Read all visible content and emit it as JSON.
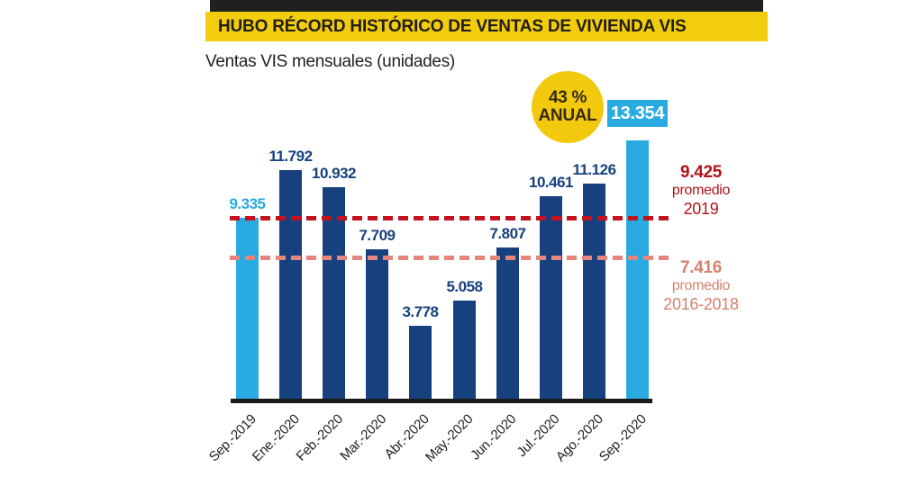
{
  "header": {
    "title": "HUBO RÉCORD HISTÓRICO DE VENTAS DE VIVIENDA VIS"
  },
  "subtitle": "Ventas VIS mensuales (unidades)",
  "badge": {
    "percent": "43 %",
    "caption": "ANUAL"
  },
  "colors": {
    "ink": "#211f1f",
    "yellow_bar": "#f2cd0d",
    "yellow_badge": "#f3c90e",
    "cyan": "#29abe2",
    "navy": "#16417e",
    "red_line": "#c3131f",
    "red_text": "#b1121a",
    "salmon_line": "#e5857b",
    "salmon_text": "#d8806f"
  },
  "chart_data": {
    "type": "bar",
    "title": "Ventas VIS mensuales (unidades)",
    "xlabel": "",
    "ylabel": "unidades",
    "ylim": [
      0,
      13354
    ],
    "grid": false,
    "legend": false,
    "categories": [
      "Sep.-2019",
      "Ene.-2020",
      "Feb.-2020",
      "Mar.-2020",
      "Abr.-2020",
      "May.-2020",
      "Jun.-2020",
      "Jul.-2020",
      "Ago.-2020",
      "Sep.-2020"
    ],
    "values": [
      9335,
      11792,
      10932,
      7709,
      3778,
      5058,
      7807,
      10461,
      11126,
      13354
    ],
    "value_labels": [
      "9.335",
      "11.792",
      "10.932",
      "7.709",
      "3.778",
      "5.058",
      "7.807",
      "10.461",
      "11.126",
      "13.354"
    ],
    "highlight_indices": [
      0,
      9
    ],
    "annotation": "43 % ANUAL",
    "reference_lines": [
      {
        "name": "avg-2019-line",
        "value": 9425,
        "label_value": "9.425",
        "caption_line1": "promedio",
        "caption_line2": "2019",
        "color": "#c3131f"
      },
      {
        "name": "avg-2016-2018-line",
        "value": 7416,
        "label_value": "7.416",
        "caption_line1": "promedio",
        "caption_line2": "2016-2018",
        "color": "#e5857b"
      }
    ]
  }
}
